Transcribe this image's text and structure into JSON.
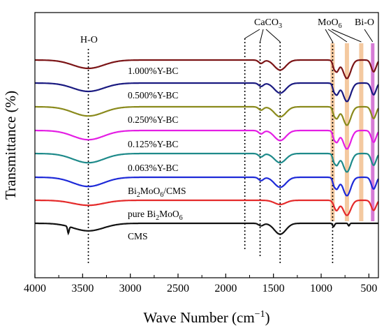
{
  "chart_data": {
    "type": "line",
    "xlabel": "Wave Number (cm−1)",
    "ylabel": "Transmittance (%)",
    "xlim": [
      4000,
      400
    ],
    "x_ticks": [
      4000,
      3500,
      3000,
      2500,
      2000,
      1500,
      1000,
      500
    ],
    "x_tick_labels": [
      "4000",
      "3500",
      "3000",
      "2500",
      "2000",
      "1500",
      "1000",
      "500"
    ],
    "y_ticks_labeled": false,
    "legend": "none",
    "grid": false,
    "series": [
      {
        "name": "1.000%Y-BC",
        "color": "#7b1416",
        "baseline": 0.0,
        "bands": [
          [
            3440,
            0.1,
            160
          ],
          [
            1630,
            0.04,
            25
          ],
          [
            1430,
            0.12,
            60
          ],
          [
            870,
            0.03,
            10
          ],
          [
            840,
            0.14,
            25
          ],
          [
            730,
            0.22,
            40
          ],
          [
            450,
            0.14,
            25
          ]
        ]
      },
      {
        "name": "0.500%Y-BC",
        "color": "#1a1a80",
        "baseline": 0.0,
        "bands": [
          [
            3440,
            0.1,
            160
          ],
          [
            1630,
            0.04,
            25
          ],
          [
            1430,
            0.12,
            60
          ],
          [
            870,
            0.03,
            10
          ],
          [
            840,
            0.14,
            25
          ],
          [
            730,
            0.22,
            40
          ],
          [
            450,
            0.14,
            25
          ]
        ]
      },
      {
        "name": "0.250%Y-BC",
        "color": "#8a8a1c",
        "baseline": 0.0,
        "bands": [
          [
            3440,
            0.11,
            160
          ],
          [
            1630,
            0.04,
            25
          ],
          [
            1430,
            0.12,
            60
          ],
          [
            870,
            0.03,
            10
          ],
          [
            840,
            0.14,
            25
          ],
          [
            730,
            0.22,
            40
          ],
          [
            450,
            0.14,
            25
          ]
        ]
      },
      {
        "name": "0.125%Y-BC",
        "color": "#e41ee4",
        "baseline": 0.0,
        "bands": [
          [
            3440,
            0.11,
            160
          ],
          [
            1630,
            0.04,
            25
          ],
          [
            1430,
            0.12,
            60
          ],
          [
            870,
            0.03,
            10
          ],
          [
            840,
            0.14,
            25
          ],
          [
            730,
            0.22,
            40
          ],
          [
            450,
            0.14,
            25
          ]
        ]
      },
      {
        "name": "0.063%Y-BC",
        "color": "#1e8a8a",
        "baseline": 0.0,
        "bands": [
          [
            3440,
            0.11,
            160
          ],
          [
            1630,
            0.04,
            25
          ],
          [
            1430,
            0.11,
            60
          ],
          [
            870,
            0.03,
            10
          ],
          [
            840,
            0.14,
            25
          ],
          [
            730,
            0.22,
            40
          ],
          [
            450,
            0.14,
            25
          ]
        ]
      },
      {
        "name": "Bi2MoO6/CMS",
        "color": "#1e2ad8",
        "baseline": 0.0,
        "bands": [
          [
            3440,
            0.11,
            160
          ],
          [
            1630,
            0.04,
            25
          ],
          [
            1430,
            0.12,
            60
          ],
          [
            870,
            0.03,
            10
          ],
          [
            840,
            0.14,
            25
          ],
          [
            730,
            0.22,
            40
          ],
          [
            450,
            0.14,
            25
          ]
        ]
      },
      {
        "name": "pure Bi2MoO6",
        "color": "#e42a2a",
        "baseline": 0.0,
        "bands": [
          [
            3440,
            0.06,
            160
          ],
          [
            1430,
            0.05,
            60
          ],
          [
            840,
            0.12,
            25
          ],
          [
            730,
            0.18,
            40
          ],
          [
            450,
            0.12,
            25
          ]
        ]
      },
      {
        "name": "CMS",
        "color": "#111111",
        "baseline": 0.0,
        "bands": [
          [
            3650,
            0.08,
            8
          ],
          [
            3440,
            0.09,
            160
          ],
          [
            1630,
            0.03,
            25
          ],
          [
            1430,
            0.13,
            60
          ],
          [
            870,
            0.04,
            10
          ],
          [
            710,
            0.03,
            8
          ]
        ]
      }
    ],
    "annotations": [
      {
        "label": "H-O",
        "x": [
          3440
        ]
      },
      {
        "label": "CaCO3",
        "x": [
          1800,
          1640,
          1430
        ]
      },
      {
        "label": "MoO6",
        "x": [
          880,
          730,
          580
        ]
      },
      {
        "label": "Bi-O",
        "x": [
          460
        ]
      }
    ]
  },
  "labels": {
    "s1": "1.000%Y-BC",
    "s2": "0.500%Y-BC",
    "s3": "0.250%Y-BC",
    "s4": "0.125%Y-BC",
    "s5": "0.063%Y-BC",
    "s6_main": "Bi",
    "s6_sub1": "2",
    "s6_mid": "MoO",
    "s6_sub2": "6",
    "s6_tail": "/CMS",
    "s7_main": "pure Bi",
    "s7_sub1": "2",
    "s7_mid": "MoO",
    "s7_sub2": "6",
    "s8": "CMS",
    "ho": "H-O",
    "caco3_main": "CaCO",
    "caco3_sub": "3",
    "moo6_main": "MoO",
    "moo6_sub": "6",
    "bio": "Bi-O",
    "xlabel_main": "Wave Number (cm",
    "xlabel_sup": "−1",
    "xlabel_tail": ")",
    "ylabel": "Transmittance (%)"
  },
  "colors": {
    "moo6_highlight": "#f4c9a0",
    "bio_highlight": "#d67bd6"
  }
}
